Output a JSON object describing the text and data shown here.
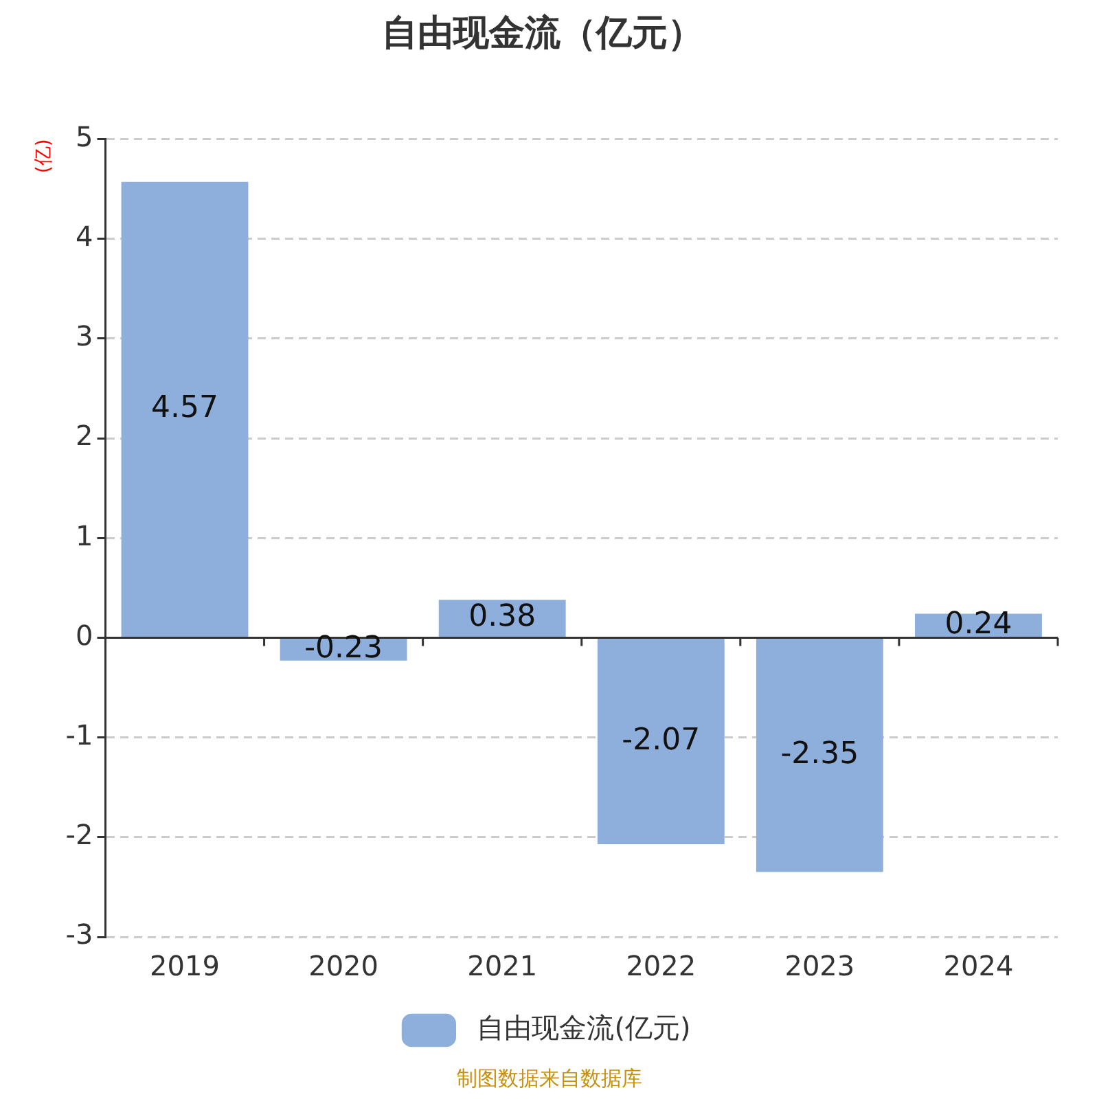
{
  "chart_data": {
    "type": "bar",
    "title": "自由现金流（亿元）",
    "ylabel": "(亿)",
    "categories": [
      "2019",
      "2020",
      "2021",
      "2022",
      "2023",
      "2024"
    ],
    "series": [
      {
        "name": "自由现金流(亿元)",
        "color": "#8eaedb",
        "values": [
          4.57,
          -0.23,
          0.38,
          -2.07,
          -2.35,
          0.24
        ]
      }
    ],
    "ylim": [
      -3,
      5
    ],
    "yticks": [
      -3,
      -2,
      -1,
      0,
      1,
      2,
      3,
      4,
      5
    ],
    "grid": "y",
    "legend": "bottom",
    "data_labels": true,
    "annotations": [
      "制图数据来自数据库"
    ]
  }
}
